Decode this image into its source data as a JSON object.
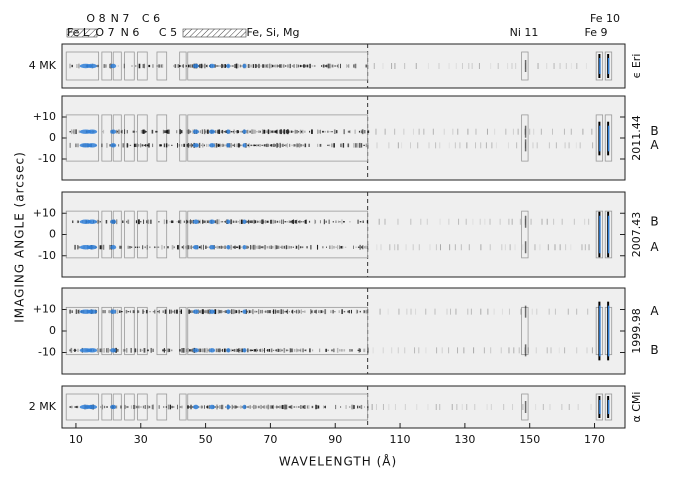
{
  "figure": {
    "x_axis": {
      "label": "WAVELENGTH (Å)",
      "lim": [
        5.7,
        179.4
      ],
      "ticks": [
        10,
        30,
        50,
        70,
        90,
        110,
        130,
        150,
        170
      ]
    },
    "y_axis": {
      "label": "IMAGING ANGLE (arcsec)"
    },
    "ion_labels": [
      "Fe L",
      "O 8",
      "O 7",
      "N 7",
      "N 6",
      "C 6",
      "C 5",
      "Fe, Si, Mg",
      "Ni 11",
      "Fe 10",
      "Fe 9"
    ],
    "panels": [
      {
        "left_label": "4 MK",
        "right_label": "ϵ Eri"
      },
      {
        "right_label": "2011.44",
        "ylim": [
          -20,
          20
        ],
        "yticks": [
          {
            "value": 10,
            "label": "+10"
          },
          0,
          -10
        ],
        "source_labels": [
          "B",
          "A"
        ]
      },
      {
        "right_label": "2007.43",
        "ylim": [
          -20,
          20
        ],
        "yticks": [
          {
            "value": 10,
            "label": "+10"
          },
          0,
          -10
        ],
        "source_labels": [
          "B",
          "A"
        ]
      },
      {
        "right_label": "1999.98",
        "ylim": [
          -20,
          20
        ],
        "yticks": [
          {
            "value": 10,
            "label": "+10"
          },
          0,
          -10
        ],
        "source_labels": [
          "A",
          "B"
        ]
      },
      {
        "left_label": "2 MK",
        "right_label": "α CMi"
      }
    ]
  }
}
